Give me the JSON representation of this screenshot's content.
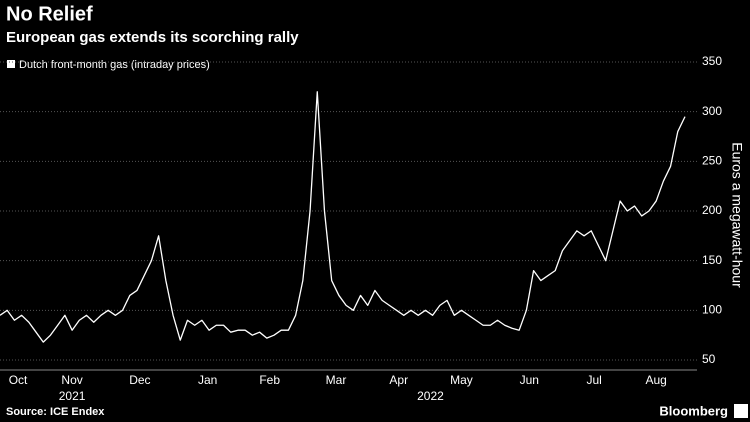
{
  "chart_data": {
    "type": "line",
    "title": "No Relief",
    "subtitle": "European gas extends its scorching rally",
    "y_label": "Euros a megawatt-hour",
    "source": "Source: ICE Endex",
    "brand": "Bloomberg",
    "series": [
      {
        "name": "Dutch front-month gas (intraday prices)",
        "color": "#ffffff",
        "values": [
          95,
          100,
          90,
          95,
          88,
          78,
          68,
          75,
          85,
          95,
          80,
          90,
          95,
          88,
          95,
          100,
          95,
          100,
          115,
          120,
          135,
          150,
          175,
          130,
          95,
          70,
          90,
          85,
          90,
          80,
          85,
          85,
          78,
          80,
          80,
          75,
          78,
          72,
          75,
          80,
          80,
          95,
          130,
          200,
          320,
          200,
          130,
          115,
          105,
          100,
          115,
          105,
          120,
          110,
          105,
          100,
          95,
          100,
          95,
          100,
          95,
          105,
          110,
          95,
          100,
          95,
          90,
          85,
          85,
          90,
          85,
          82,
          80,
          100,
          140,
          130,
          135,
          140,
          160,
          170,
          180,
          175,
          180,
          165,
          150,
          180,
          210,
          200,
          205,
          195,
          200,
          210,
          230,
          245,
          280,
          295
        ]
      }
    ],
    "xlim": [
      0,
      95
    ],
    "xticks": [
      {
        "value": 2.5,
        "label": "Oct"
      },
      {
        "value": 10,
        "label": "Nov"
      },
      {
        "value": 19.4,
        "label": "Dec"
      },
      {
        "value": 28.8,
        "label": "Jan"
      },
      {
        "value": 37.4,
        "label": "Feb"
      },
      {
        "value": 46.6,
        "label": "Mar"
      },
      {
        "value": 55.3,
        "label": "Apr"
      },
      {
        "value": 64,
        "label": "May"
      },
      {
        "value": 73.4,
        "label": "Jun"
      },
      {
        "value": 82.4,
        "label": "Jul"
      },
      {
        "value": 91,
        "label": "Aug"
      }
    ],
    "year_ticks": [
      {
        "value": 10,
        "label": "2021"
      },
      {
        "value": 59.7,
        "label": "2022"
      }
    ],
    "ylim": [
      50,
      350
    ],
    "yticks": [
      50,
      100,
      150,
      200,
      250,
      300,
      350
    ],
    "grid": true
  }
}
